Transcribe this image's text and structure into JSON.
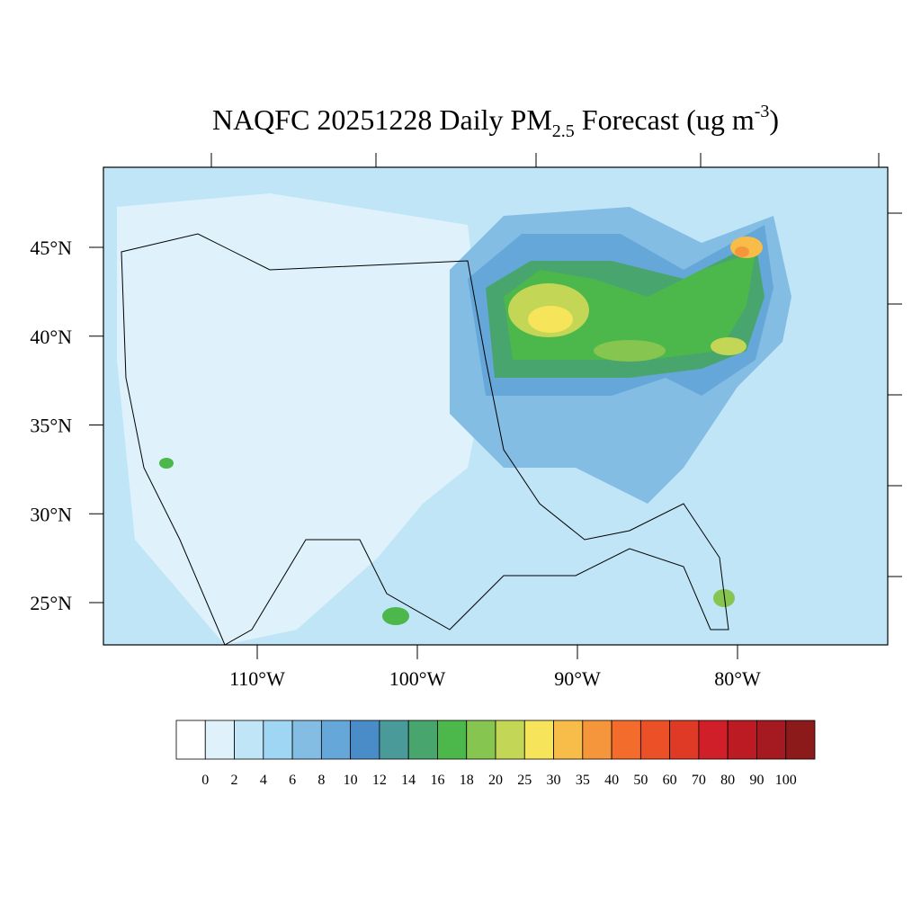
{
  "map": {
    "title": {
      "main": "NAQFC 20251228 Daily PM",
      "subscript": "2.5",
      "unit": " Forecast (ug m",
      "superscript": "-3",
      "close": ")"
    },
    "lat_ticks": [
      {
        "value": 45,
        "label": "45°N"
      },
      {
        "value": 40,
        "label": "40°N"
      },
      {
        "value": 35,
        "label": "35°N"
      },
      {
        "value": 30,
        "label": "30°N"
      },
      {
        "value": 25,
        "label": "25°N"
      }
    ],
    "lon_ticks": [
      {
        "value": -110,
        "label": "110°W"
      },
      {
        "value": -100,
        "label": "100°W"
      },
      {
        "value": -90,
        "label": "90°W"
      },
      {
        "value": -80,
        "label": "80°W"
      }
    ],
    "colorbar": {
      "levels": [
        0,
        2,
        4,
        6,
        8,
        10,
        12,
        14,
        16,
        18,
        20,
        25,
        30,
        35,
        40,
        50,
        60,
        70,
        80,
        90,
        100
      ],
      "colors": [
        "#ffffff",
        "#dff2fb",
        "#bfe5f7",
        "#9ed6f3",
        "#84bde4",
        "#66a7da",
        "#4a8cc8",
        "#4b9a9a",
        "#48a56d",
        "#4cb74a",
        "#86c54f",
        "#c4d655",
        "#f6e45a",
        "#f8bd48",
        "#f6963c",
        "#f36c2c",
        "#eb5026",
        "#df3a26",
        "#d01f28",
        "#bc1b24",
        "#a51a20",
        "#8c1a1a"
      ]
    }
  }
}
